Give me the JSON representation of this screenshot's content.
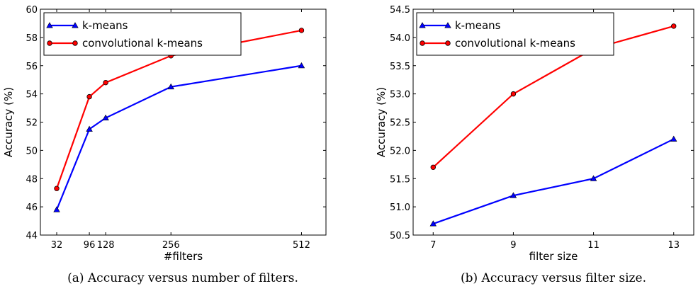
{
  "chart_data": [
    {
      "type": "line",
      "caption": "(a) Accuracy versus number of filters.",
      "xlabel": "#filters",
      "ylabel": "Accuracy (%)",
      "x": [
        32,
        96,
        128,
        256,
        512
      ],
      "xlim": [
        0,
        560
      ],
      "xticks": [
        32,
        96,
        128,
        256,
        512
      ],
      "ylim": [
        44,
        60
      ],
      "yticks": [
        44,
        46,
        48,
        50,
        52,
        54,
        56,
        58,
        60
      ],
      "ytick_decimals": 0,
      "legend_position": "upper-left",
      "series": [
        {
          "name": "k-means",
          "color": "#0000ff",
          "marker": "triangle",
          "values": [
            45.8,
            51.5,
            52.3,
            54.5,
            56.0
          ]
        },
        {
          "name": "convolutional k-means",
          "color": "#ff0000",
          "marker": "circle",
          "values": [
            47.3,
            53.8,
            54.8,
            56.7,
            58.5
          ]
        }
      ]
    },
    {
      "type": "line",
      "caption": "(b) Accuracy versus filter size.",
      "xlabel": "filter size",
      "ylabel": "Accuracy (%)",
      "x": [
        7,
        9,
        11,
        13
      ],
      "xlim": [
        6.5,
        13.5
      ],
      "xticks": [
        7,
        9,
        11,
        13
      ],
      "ylim": [
        50.5,
        54.5
      ],
      "yticks": [
        50.5,
        51.0,
        51.5,
        52.0,
        52.5,
        53.0,
        53.5,
        54.0,
        54.5
      ],
      "ytick_decimals": 1,
      "legend_position": "upper-left",
      "series": [
        {
          "name": "k-means",
          "color": "#0000ff",
          "marker": "triangle",
          "values": [
            50.7,
            51.2,
            51.5,
            52.2
          ]
        },
        {
          "name": "convolutional k-means",
          "color": "#ff0000",
          "marker": "circle",
          "values": [
            51.7,
            53.0,
            53.8,
            54.2
          ]
        }
      ]
    }
  ]
}
